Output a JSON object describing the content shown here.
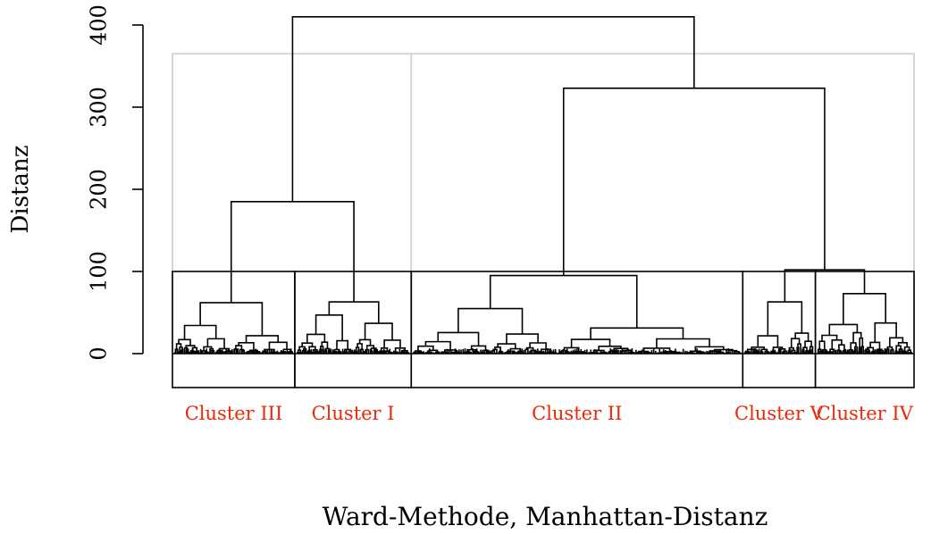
{
  "chart_data": {
    "type": "dendrogram",
    "ylabel": "Distanz",
    "xlabel": "Ward-Methode, Manhattan-Distanz",
    "ylim": [
      0,
      420
    ],
    "yticks": [
      0,
      100,
      200,
      300,
      400
    ],
    "cut_heights": [
      100,
      365
    ],
    "merges": [
      {
        "left": "Cluster III",
        "right": "Cluster I",
        "height": 185
      },
      {
        "left": "Cluster V",
        "right": "Cluster IV",
        "height": 102
      },
      {
        "left": "Cluster II",
        "right": "Cluster V + Cluster IV",
        "height": 323
      },
      {
        "left": "Cluster III + Cluster I",
        "right": "Cluster II + Cluster V + Cluster IV",
        "height": 410
      }
    ],
    "clusters": [
      {
        "label": "Cluster III",
        "color": "#e8290b",
        "top_height": 62,
        "share": 0.165
      },
      {
        "label": "Cluster I",
        "color": "#e8290b",
        "top_height": 63,
        "share": 0.157
      },
      {
        "label": "Cluster II",
        "color": "#e8290b",
        "top_height": 95,
        "share": 0.447
      },
      {
        "label": "Cluster V",
        "color": "#e8290b",
        "top_height": 63,
        "share": 0.098
      },
      {
        "label": "Cluster IV",
        "color": "#e8290b",
        "top_height": 73,
        "share": 0.133
      }
    ]
  }
}
